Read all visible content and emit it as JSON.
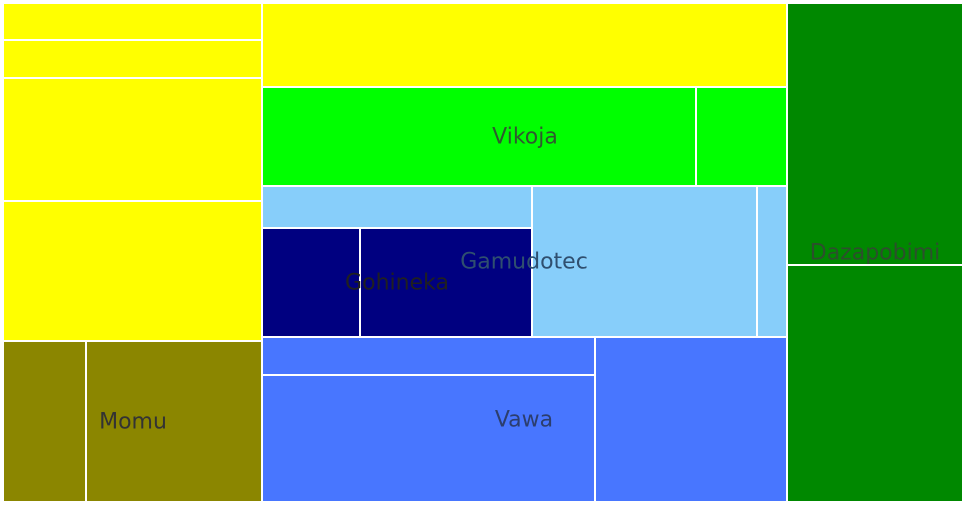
{
  "chart_data": {
    "type": "treemap",
    "title": "",
    "groups": [
      {
        "name": "Vikoja",
        "color": "#ffff00",
        "label_color": "#1e3a1e",
        "show_label": false,
        "values": [
          38,
          38,
          122,
          140
        ]
      },
      {
        "name": "Vikoja",
        "color": "#00ff00",
        "label_color": "#2f5a2f",
        "show_label": true,
        "values": [
          43,
          88,
          18
        ]
      },
      {
        "name": "Dazapobimi",
        "color": "#008800",
        "label_color": "#2c4f2c",
        "show_label": true,
        "values": [
          46,
          41
        ]
      },
      {
        "name": "Gamudotec",
        "color": "#87cefa",
        "label_color": "#2f4f6f",
        "show_label": true,
        "values": [
          11,
          29,
          3
        ]
      },
      {
        "name": "Gohineka",
        "color": "#000080",
        "label_color": "#202020",
        "show_label": true,
        "values": [
          11,
          18
        ]
      },
      {
        "name": "Vawa",
        "color": "#4876ff",
        "label_color": "#2c3e6e",
        "show_label": true,
        "values": [
          12,
          43,
          32
        ]
      },
      {
        "name": "Momu",
        "color": "#8b8600",
        "label_color": "#333333",
        "show_label": true,
        "values": [
          14,
          30
        ]
      }
    ]
  }
}
